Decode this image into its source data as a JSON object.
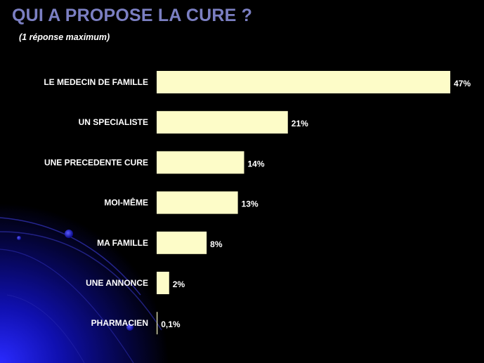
{
  "slide": {
    "title": "QUI A PROPOSE LA CURE ?",
    "subtitle": "(1 réponse maximum)"
  },
  "colors": {
    "background": "#000000",
    "title": "#7b7fc2",
    "bar": "#fdfcc8",
    "text": "#ffffff",
    "decor_blue": "#1a1adf"
  },
  "chart_data": {
    "type": "bar",
    "orientation": "horizontal",
    "categories": [
      "LE MEDECIN DE FAMILLE",
      "UN SPECIALISTE",
      "UNE PRECEDENTE CURE",
      "MOI-MÊME",
      "MA FAMILLE",
      "UNE ANNONCE",
      "PHARMACIEN"
    ],
    "values": [
      47,
      21,
      14,
      13,
      8,
      2,
      0.1
    ],
    "value_labels": [
      "47%",
      "21%",
      "14%",
      "13%",
      "8%",
      "2%",
      "0,1%"
    ],
    "unit": "%",
    "xlim": [
      0,
      47
    ],
    "grid": false,
    "legend": "none"
  }
}
